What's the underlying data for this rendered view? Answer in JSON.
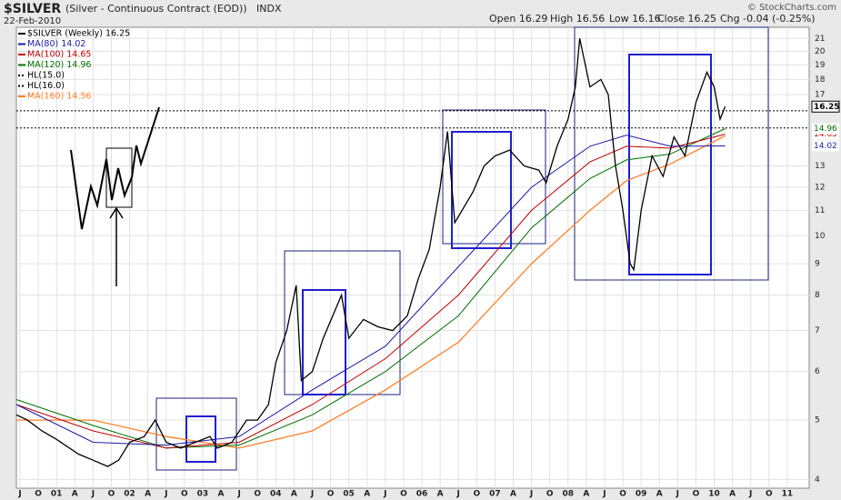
{
  "header": {
    "symbol": "$SILVER",
    "description": "(Silver - Continuous Contract (EOD))",
    "exchange": "INDX",
    "date": "22-Feb-2010",
    "open": "Open 16.29",
    "high": "High 16.56",
    "low": "Low 16.16",
    "close": "Close 16.25",
    "change": "Chg -0.04 (-0.25%)",
    "credit": "© StockCharts.com"
  },
  "chart_data": {
    "type": "line",
    "log_scale": true,
    "grid": true,
    "legend": "upper left",
    "xlim": [
      2000.45,
      2011.3
    ],
    "ylim": [
      3.87,
      21.9
    ],
    "yticks": [
      4,
      5,
      6,
      7,
      8,
      9,
      10,
      11,
      12,
      13,
      17,
      18,
      19,
      20,
      21
    ],
    "xticks": [
      {
        "value": 2000.5,
        "label": "J"
      },
      {
        "value": 2000.75,
        "label": "O"
      },
      {
        "value": 2001,
        "label": "01"
      },
      {
        "value": 2001.25,
        "label": "A"
      },
      {
        "value": 2001.5,
        "label": "J"
      },
      {
        "value": 2001.75,
        "label": "O"
      },
      {
        "value": 2002,
        "label": "02"
      },
      {
        "value": 2002.25,
        "label": "A"
      },
      {
        "value": 2002.5,
        "label": "J"
      },
      {
        "value": 2002.75,
        "label": "O"
      },
      {
        "value": 2003,
        "label": "03"
      },
      {
        "value": 2003.25,
        "label": "A"
      },
      {
        "value": 2003.5,
        "label": "J"
      },
      {
        "value": 2003.75,
        "label": "O"
      },
      {
        "value": 2004,
        "label": "04"
      },
      {
        "value": 2004.25,
        "label": "A"
      },
      {
        "value": 2004.5,
        "label": "J"
      },
      {
        "value": 2004.75,
        "label": "O"
      },
      {
        "value": 2005,
        "label": "05"
      },
      {
        "value": 2005.25,
        "label": "A"
      },
      {
        "value": 2005.5,
        "label": "J"
      },
      {
        "value": 2005.75,
        "label": "O"
      },
      {
        "value": 2006,
        "label": "06"
      },
      {
        "value": 2006.25,
        "label": "A"
      },
      {
        "value": 2006.5,
        "label": "J"
      },
      {
        "value": 2006.75,
        "label": "O"
      },
      {
        "value": 2007,
        "label": "07"
      },
      {
        "value": 2007.25,
        "label": "A"
      },
      {
        "value": 2007.5,
        "label": "J"
      },
      {
        "value": 2007.75,
        "label": "O"
      },
      {
        "value": 2008,
        "label": "08"
      },
      {
        "value": 2008.25,
        "label": "A"
      },
      {
        "value": 2008.5,
        "label": "J"
      },
      {
        "value": 2008.75,
        "label": "O"
      },
      {
        "value": 2009,
        "label": "09"
      },
      {
        "value": 2009.25,
        "label": "A"
      },
      {
        "value": 2009.5,
        "label": "J"
      },
      {
        "value": 2009.75,
        "label": "O"
      },
      {
        "value": 2010,
        "label": "10"
      },
      {
        "value": 2010.25,
        "label": "A"
      },
      {
        "value": 2010.5,
        "label": "J"
      },
      {
        "value": 2010.75,
        "label": "O"
      },
      {
        "value": 2011,
        "label": "11"
      }
    ],
    "series": [
      {
        "name": "$SILVER (Weekly) 16.25",
        "color": "#000000",
        "width": 1.3,
        "axis_label": true,
        "x": [
          2000.45,
          2000.6,
          2000.8,
          2001.0,
          2001.3,
          2001.5,
          2001.7,
          2001.85,
          2002.0,
          2002.2,
          2002.35,
          2002.5,
          2002.7,
          2002.9,
          2003.1,
          2003.2,
          2003.4,
          2003.6,
          2003.75,
          2003.9,
          2004.0,
          2004.15,
          2004.28,
          2004.35,
          2004.5,
          2004.65,
          2004.9,
          2005.0,
          2005.2,
          2005.4,
          2005.6,
          2005.8,
          2005.95,
          2006.1,
          2006.25,
          2006.35,
          2006.45,
          2006.55,
          2006.7,
          2006.85,
          2007.0,
          2007.2,
          2007.4,
          2007.6,
          2007.7,
          2007.85,
          2008.0,
          2008.1,
          2008.16,
          2008.3,
          2008.45,
          2008.55,
          2008.65,
          2008.75,
          2008.85,
          2008.9,
          2009.0,
          2009.15,
          2009.3,
          2009.45,
          2009.6,
          2009.75,
          2009.9,
          2010.0,
          2010.08,
          2010.15
        ],
        "values": [
          5.1,
          5.0,
          4.8,
          4.65,
          4.4,
          4.3,
          4.2,
          4.3,
          4.6,
          4.7,
          5.0,
          4.6,
          4.5,
          4.6,
          4.7,
          4.5,
          4.6,
          5.0,
          5.0,
          5.3,
          6.2,
          7.0,
          8.3,
          5.8,
          6.0,
          6.8,
          8.0,
          6.8,
          7.3,
          7.1,
          7.0,
          7.4,
          8.5,
          9.5,
          12.0,
          14.8,
          10.5,
          11.0,
          11.8,
          13.0,
          13.5,
          13.8,
          13.0,
          12.8,
          12.2,
          14.0,
          15.5,
          17.5,
          21.0,
          17.5,
          18.0,
          17.0,
          13.0,
          11.0,
          9.0,
          8.8,
          11.0,
          13.5,
          12.5,
          14.5,
          13.5,
          16.5,
          18.5,
          17.5,
          15.5,
          16.25
        ]
      },
      {
        "name": "MA(80) 14.02",
        "color": "#1a1aa8",
        "width": 1,
        "axis_label": true,
        "x": [
          2000.45,
          2001.5,
          2002.5,
          2003.5,
          2004.5,
          2005.5,
          2006.5,
          2007.5,
          2008.3,
          2008.8,
          2009.4,
          2010.15
        ],
        "values": [
          5.3,
          4.6,
          4.55,
          4.7,
          5.6,
          6.6,
          8.9,
          12.0,
          14.0,
          14.6,
          14.0,
          14.02
        ]
      },
      {
        "name": "MA(100) 14.65",
        "color": "#c00000",
        "width": 1,
        "axis_label": true,
        "x": [
          2000.45,
          2001.5,
          2002.5,
          2003.5,
          2004.5,
          2005.5,
          2006.5,
          2007.5,
          2008.3,
          2008.8,
          2009.4,
          2010.15
        ],
        "values": [
          5.3,
          4.8,
          4.5,
          4.6,
          5.3,
          6.3,
          8.0,
          11.0,
          13.2,
          14.0,
          13.9,
          14.65
        ]
      },
      {
        "name": "MA(120) 14.96",
        "color": "#007000",
        "width": 1,
        "axis_label": true,
        "x": [
          2000.45,
          2001.5,
          2002.5,
          2003.5,
          2004.5,
          2005.5,
          2006.5,
          2007.5,
          2008.3,
          2008.8,
          2009.4,
          2010.15
        ],
        "values": [
          5.4,
          4.9,
          4.5,
          4.55,
          5.1,
          6.0,
          7.4,
          10.3,
          12.4,
          13.3,
          13.6,
          14.96
        ]
      },
      {
        "name": "MA(160) 14.56",
        "color": "#ff7f27",
        "width": 1.3,
        "axis_label": false,
        "x": [
          2000.45,
          2001.5,
          2002.5,
          2003.5,
          2004.5,
          2005.5,
          2006.5,
          2007.5,
          2008.3,
          2008.8,
          2009.4,
          2010.15
        ],
        "values": [
          5.0,
          5.0,
          4.7,
          4.5,
          4.8,
          5.6,
          6.7,
          9.0,
          11.0,
          12.3,
          13.1,
          14.56
        ]
      }
    ],
    "hlines": [
      {
        "name": "HL(15.0)",
        "value": 15
      },
      {
        "name": "HL(16.0)",
        "value": 16
      }
    ]
  }
}
